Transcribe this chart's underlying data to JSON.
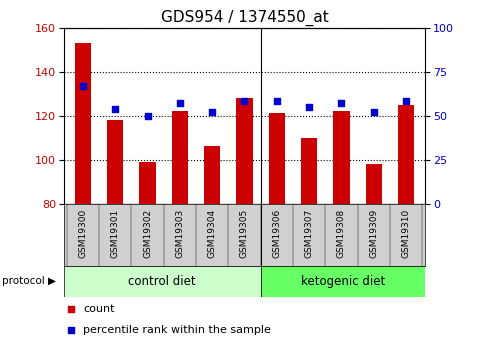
{
  "title": "GDS954 / 1374550_at",
  "samples": [
    "GSM19300",
    "GSM19301",
    "GSM19302",
    "GSM19303",
    "GSM19304",
    "GSM19305",
    "GSM19306",
    "GSM19307",
    "GSM19308",
    "GSM19309",
    "GSM19310"
  ],
  "counts": [
    153,
    118,
    99,
    122,
    106,
    128,
    121,
    110,
    122,
    98,
    125
  ],
  "percentiles": [
    67,
    54,
    50,
    57,
    52,
    58,
    58,
    55,
    57,
    52,
    58
  ],
  "ylim_left": [
    80,
    160
  ],
  "ylim_right": [
    0,
    100
  ],
  "yticks_left": [
    80,
    100,
    120,
    140,
    160
  ],
  "yticks_right": [
    0,
    25,
    50,
    75,
    100
  ],
  "bar_color": "#cc0000",
  "dot_color": "#0000cc",
  "plot_bg": "#ffffff",
  "xtick_bg": "#d0d0d0",
  "control_diet_color": "#ccffcc",
  "ketogenic_diet_color": "#66ff66",
  "n_control": 6,
  "protocol_label": "protocol",
  "control_label": "control diet",
  "ketogenic_label": "ketogenic diet",
  "legend_count_label": "count",
  "legend_pct_label": "percentile rank within the sample",
  "title_fontsize": 11,
  "tick_fontsize": 8,
  "label_fontsize": 8.5
}
